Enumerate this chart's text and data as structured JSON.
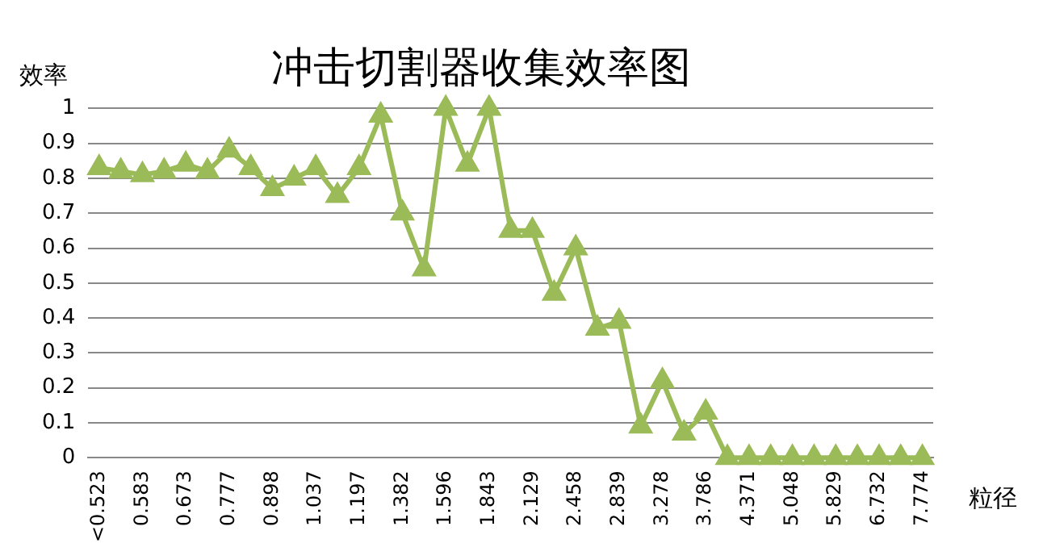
{
  "chart_data": {
    "type": "line",
    "title": "冲击切割器收集效率图",
    "ylabel": "效率",
    "xlabel": "粒径",
    "categories": [
      "<0.523",
      null,
      "0.583",
      null,
      "0.673",
      null,
      "0.777",
      null,
      "0.898",
      null,
      "1.037",
      null,
      "1.197",
      null,
      "1.382",
      null,
      "1.596",
      null,
      "1.843",
      null,
      "2.129",
      null,
      "2.458",
      null,
      "2.839",
      null,
      "3.278",
      null,
      "3.786",
      null,
      "4.371",
      null,
      "5.048",
      null,
      "5.829",
      null,
      "6.732",
      null,
      "7.774"
    ],
    "series": [
      {
        "color": "#9bbb59",
        "values": [
          0.83,
          0.82,
          0.81,
          0.82,
          0.84,
          0.82,
          0.88,
          0.83,
          0.77,
          0.8,
          0.83,
          0.75,
          0.83,
          0.98,
          0.7,
          0.54,
          1.0,
          0.84,
          1.0,
          0.65,
          0.65,
          0.47,
          0.6,
          0.37,
          0.39,
          0.09,
          0.22,
          0.07,
          0.13,
          0,
          0,
          0,
          0,
          0,
          0,
          0,
          0,
          0,
          0
        ]
      }
    ],
    "ylim": [
      0,
      1
    ],
    "yticks": [
      0,
      0.1,
      0.2,
      0.3,
      0.4,
      0.5,
      0.6,
      0.7,
      0.8,
      0.9,
      1
    ],
    "grid": "y",
    "legend": false,
    "marker": "triangle",
    "line_style": "solid"
  }
}
